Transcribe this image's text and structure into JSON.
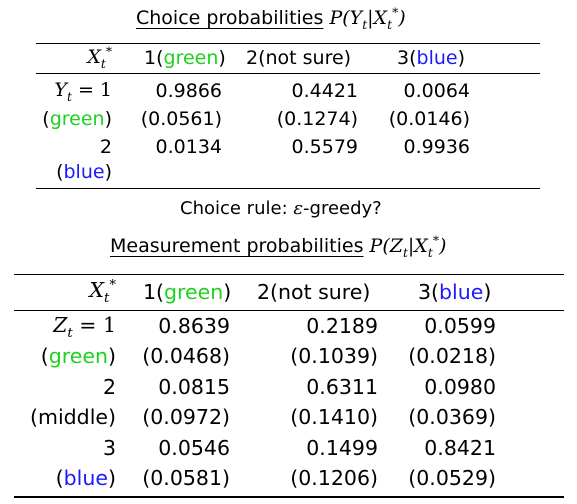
{
  "table1": {
    "title": "Choice probabilities",
    "formula_text": "P(Y|X*)",
    "header": {
      "rowvar": "X*",
      "col1_num": "1(",
      "col1_word": "green",
      "col1_close": ")",
      "col2": "2(not sure)",
      "col3_num": "3(",
      "col3_word": "blue",
      "col3_close": ")"
    },
    "rows": [
      {
        "label_math": "Y = 1",
        "v1": "0.9866",
        "v2": "0.4421",
        "v3": "0.0064"
      },
      {
        "label_open": "(",
        "label_word": "green",
        "label_close": ")",
        "v1": "(0.0561)",
        "v2": "(0.1274)",
        "v3": "(0.0146)"
      },
      {
        "label": "2",
        "v1": "0.0134",
        "v2": "0.5579",
        "v3": "0.9936"
      },
      {
        "label_open": "(",
        "label_word": "blue",
        "label_close": ")"
      }
    ]
  },
  "caption": {
    "prefix": "Choice rule: ",
    "epsilon": "ε",
    "suffix": "-greedy?"
  },
  "table2": {
    "title": "Measurement probabilities",
    "formula_text": "P(Z|X*)",
    "header": {
      "rowvar": "X*",
      "col1_num": "1(",
      "col1_word": "green",
      "col1_close": ")",
      "col2": "2(not sure)",
      "col3_num": "3(",
      "col3_word": "blue",
      "col3_close": ")"
    },
    "rows": [
      {
        "label_math": "Z = 1",
        "v1": "0.8639",
        "v2": "0.2189",
        "v3": "0.0599"
      },
      {
        "label_open": "(",
        "label_word": "green",
        "label_close": ")",
        "v1": "(0.0468)",
        "v2": "(0.1039)",
        "v3": "(0.0218)"
      },
      {
        "label": "2",
        "v1": "0.0815",
        "v2": "0.6311",
        "v3": "0.0980"
      },
      {
        "label": "(middle)",
        "v1": "(0.0972)",
        "v2": "(0.1410)",
        "v3": "(0.0369)"
      },
      {
        "label": "3",
        "v1": "0.0546",
        "v2": "0.1499",
        "v3": "0.8421"
      },
      {
        "label_open": "(",
        "label_word": "blue",
        "label_close": ")",
        "v1": "(0.0581)",
        "v2": "(0.1206)",
        "v3": "(0.0529)"
      }
    ]
  },
  "colors": {
    "green": "#1fd11f",
    "blue": "#1a1aff"
  }
}
